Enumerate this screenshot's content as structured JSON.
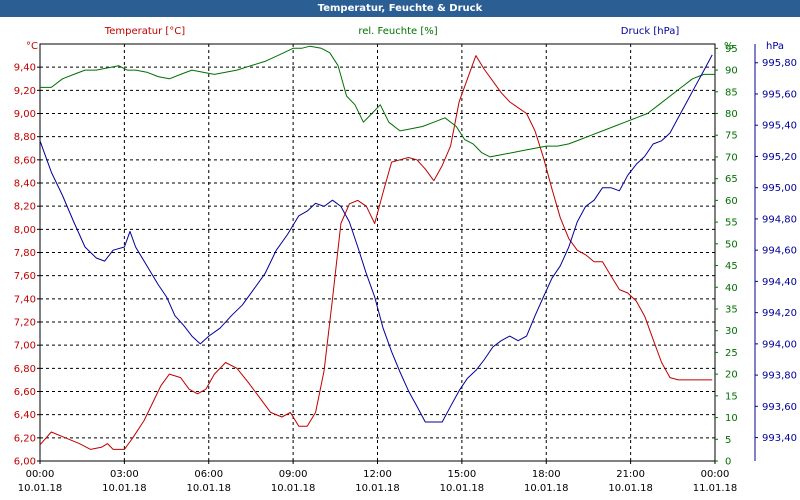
{
  "window": {
    "title": "Temperatur, Feuchte & Druck"
  },
  "chart_data": {
    "type": "line",
    "title": "Temperatur, Feuchte & Druck",
    "colors": {
      "temperature": "#c00000",
      "humidity": "#007000",
      "pressure": "#00009a",
      "title_bar": "#2b5f94"
    },
    "x_ticks": [
      {
        "time": "00:00",
        "date": "10.01.18"
      },
      {
        "time": "03:00",
        "date": "10.01.18"
      },
      {
        "time": "06:00",
        "date": "10.01.18"
      },
      {
        "time": "09:00",
        "date": "10.01.18"
      },
      {
        "time": "12:00",
        "date": "10.01.18"
      },
      {
        "time": "15:00",
        "date": "10.01.18"
      },
      {
        "time": "18:00",
        "date": "10.01.18"
      },
      {
        "time": "21:00",
        "date": "10.01.18"
      },
      {
        "time": "00:00",
        "date": "11.01.18"
      }
    ],
    "xlim_hours": [
      0,
      24
    ],
    "grid": true,
    "axes": {
      "temperature": {
        "unit": "°C",
        "series_label": "Temperatur [°C]",
        "ylim": [
          6.0,
          9.6
        ],
        "ticks": [
          "6,00",
          "6,20",
          "6,40",
          "6,60",
          "6,80",
          "7,00",
          "7,20",
          "7,40",
          "7,60",
          "7,80",
          "8,00",
          "8,20",
          "8,40",
          "8,60",
          "8,80",
          "9,00",
          "9,20",
          "9,40"
        ]
      },
      "humidity": {
        "unit": "%",
        "series_label": "rel. Feuchte [%]",
        "ylim": [
          0,
          96
        ],
        "ticks": [
          "0",
          "5",
          "10",
          "15",
          "20",
          "25",
          "30",
          "35",
          "40",
          "45",
          "50",
          "55",
          "60",
          "65",
          "70",
          "75",
          "80",
          "85",
          "90",
          "95"
        ]
      },
      "pressure": {
        "unit": "hPa",
        "series_label": "Druck [hPa]",
        "ylim": [
          993.25,
          995.92
        ],
        "ticks": [
          "993,40",
          "993,60",
          "993,80",
          "994,00",
          "994,20",
          "994,40",
          "994,60",
          "994,80",
          "995,00",
          "995,20",
          "995,40",
          "995,60",
          "995,80"
        ]
      }
    },
    "series": [
      {
        "name": "Temperatur [°C]",
        "axis": "temperature",
        "points": [
          [
            0,
            6.14
          ],
          [
            0.4,
            6.25
          ],
          [
            0.9,
            6.2
          ],
          [
            1.4,
            6.15
          ],
          [
            1.8,
            6.1
          ],
          [
            2.2,
            6.12
          ],
          [
            2.4,
            6.15
          ],
          [
            2.6,
            6.1
          ],
          [
            3.0,
            6.1
          ],
          [
            3.3,
            6.2
          ],
          [
            3.7,
            6.35
          ],
          [
            4.0,
            6.5
          ],
          [
            4.3,
            6.65
          ],
          [
            4.6,
            6.75
          ],
          [
            5.0,
            6.72
          ],
          [
            5.3,
            6.62
          ],
          [
            5.6,
            6.58
          ],
          [
            5.9,
            6.62
          ],
          [
            6.2,
            6.75
          ],
          [
            6.6,
            6.85
          ],
          [
            7.0,
            6.8
          ],
          [
            7.4,
            6.68
          ],
          [
            7.8,
            6.55
          ],
          [
            8.2,
            6.42
          ],
          [
            8.6,
            6.38
          ],
          [
            8.9,
            6.42
          ],
          [
            9.2,
            6.3
          ],
          [
            9.5,
            6.3
          ],
          [
            9.8,
            6.42
          ],
          [
            10.1,
            6.78
          ],
          [
            10.4,
            7.4
          ],
          [
            10.7,
            8.05
          ],
          [
            11.0,
            8.22
          ],
          [
            11.3,
            8.25
          ],
          [
            11.6,
            8.2
          ],
          [
            11.9,
            8.05
          ],
          [
            12.2,
            8.32
          ],
          [
            12.5,
            8.58
          ],
          [
            12.8,
            8.6
          ],
          [
            13.1,
            8.62
          ],
          [
            13.4,
            8.6
          ],
          [
            13.7,
            8.52
          ],
          [
            14.0,
            8.42
          ],
          [
            14.3,
            8.55
          ],
          [
            14.6,
            8.72
          ],
          [
            14.9,
            9.1
          ],
          [
            15.2,
            9.3
          ],
          [
            15.5,
            9.5
          ],
          [
            15.8,
            9.38
          ],
          [
            16.1,
            9.28
          ],
          [
            16.4,
            9.18
          ],
          [
            16.7,
            9.1
          ],
          [
            17.0,
            9.05
          ],
          [
            17.3,
            9.0
          ],
          [
            17.6,
            8.85
          ],
          [
            17.9,
            8.62
          ],
          [
            18.2,
            8.35
          ],
          [
            18.5,
            8.1
          ],
          [
            18.8,
            7.92
          ],
          [
            19.1,
            7.82
          ],
          [
            19.4,
            7.78
          ],
          [
            19.7,
            7.72
          ],
          [
            20.0,
            7.72
          ],
          [
            20.3,
            7.6
          ],
          [
            20.6,
            7.48
          ],
          [
            20.9,
            7.45
          ],
          [
            21.2,
            7.38
          ],
          [
            21.5,
            7.25
          ],
          [
            21.8,
            7.05
          ],
          [
            22.1,
            6.85
          ],
          [
            22.4,
            6.72
          ],
          [
            22.7,
            6.7
          ],
          [
            23.0,
            6.7
          ],
          [
            23.3,
            6.7
          ],
          [
            23.6,
            6.7
          ],
          [
            23.9,
            6.7
          ]
        ]
      },
      {
        "name": "rel. Feuchte [%]",
        "axis": "humidity",
        "points": [
          [
            0,
            86
          ],
          [
            0.4,
            86
          ],
          [
            0.8,
            88
          ],
          [
            1.2,
            89
          ],
          [
            1.6,
            90
          ],
          [
            2.0,
            90
          ],
          [
            2.4,
            90.5
          ],
          [
            2.8,
            91
          ],
          [
            3.1,
            90
          ],
          [
            3.4,
            90
          ],
          [
            3.8,
            89.5
          ],
          [
            4.2,
            88.5
          ],
          [
            4.6,
            88
          ],
          [
            5.0,
            89
          ],
          [
            5.4,
            90
          ],
          [
            5.8,
            89.5
          ],
          [
            6.2,
            89
          ],
          [
            6.6,
            89.5
          ],
          [
            7.0,
            90
          ],
          [
            7.5,
            91
          ],
          [
            8.0,
            92
          ],
          [
            8.5,
            93.5
          ],
          [
            9.0,
            95
          ],
          [
            9.3,
            95
          ],
          [
            9.6,
            95.5
          ],
          [
            10.0,
            95
          ],
          [
            10.3,
            94
          ],
          [
            10.6,
            91
          ],
          [
            10.9,
            84
          ],
          [
            11.2,
            82
          ],
          [
            11.5,
            78
          ],
          [
            11.8,
            80
          ],
          [
            12.1,
            82
          ],
          [
            12.4,
            78
          ],
          [
            12.8,
            76
          ],
          [
            13.2,
            76.5
          ],
          [
            13.6,
            77
          ],
          [
            14.0,
            78
          ],
          [
            14.4,
            79
          ],
          [
            14.8,
            77
          ],
          [
            15.1,
            74
          ],
          [
            15.4,
            73
          ],
          [
            15.7,
            71
          ],
          [
            16.0,
            70
          ],
          [
            16.4,
            70.5
          ],
          [
            16.8,
            71
          ],
          [
            17.2,
            71.5
          ],
          [
            17.6,
            72
          ],
          [
            18.0,
            72.5
          ],
          [
            18.4,
            72.5
          ],
          [
            18.8,
            73
          ],
          [
            19.2,
            74
          ],
          [
            19.6,
            75
          ],
          [
            20.0,
            76
          ],
          [
            20.4,
            77
          ],
          [
            20.8,
            78
          ],
          [
            21.2,
            79
          ],
          [
            21.6,
            80
          ],
          [
            22.0,
            82
          ],
          [
            22.4,
            84
          ],
          [
            22.8,
            86
          ],
          [
            23.2,
            88
          ],
          [
            23.6,
            89
          ],
          [
            24.0,
            89
          ]
        ]
      },
      {
        "name": "Druck [hPa]",
        "axis": "pressure",
        "points": [
          [
            0,
            995.3
          ],
          [
            0.4,
            995.1
          ],
          [
            0.8,
            994.95
          ],
          [
            1.2,
            994.78
          ],
          [
            1.6,
            994.62
          ],
          [
            2.0,
            994.55
          ],
          [
            2.3,
            994.53
          ],
          [
            2.6,
            994.6
          ],
          [
            3.0,
            994.62
          ],
          [
            3.2,
            994.72
          ],
          [
            3.4,
            994.62
          ],
          [
            3.8,
            994.5
          ],
          [
            4.2,
            994.38
          ],
          [
            4.5,
            994.3
          ],
          [
            4.8,
            994.18
          ],
          [
            5.1,
            994.12
          ],
          [
            5.4,
            994.05
          ],
          [
            5.7,
            994.0
          ],
          [
            6.0,
            994.05
          ],
          [
            6.4,
            994.1
          ],
          [
            6.8,
            994.18
          ],
          [
            7.2,
            994.25
          ],
          [
            7.6,
            994.35
          ],
          [
            8.0,
            994.45
          ],
          [
            8.4,
            994.6
          ],
          [
            8.8,
            994.7
          ],
          [
            9.2,
            994.82
          ],
          [
            9.5,
            994.85
          ],
          [
            9.8,
            994.9
          ],
          [
            10.1,
            994.88
          ],
          [
            10.4,
            994.92
          ],
          [
            10.7,
            994.88
          ],
          [
            11.0,
            994.78
          ],
          [
            11.3,
            994.62
          ],
          [
            11.6,
            994.45
          ],
          [
            11.9,
            994.3
          ],
          [
            12.2,
            994.1
          ],
          [
            12.5,
            993.95
          ],
          [
            12.8,
            993.82
          ],
          [
            13.1,
            993.7
          ],
          [
            13.4,
            993.6
          ],
          [
            13.7,
            993.5
          ],
          [
            14.0,
            993.5
          ],
          [
            14.3,
            993.5
          ],
          [
            14.6,
            993.6
          ],
          [
            14.9,
            993.7
          ],
          [
            15.2,
            993.78
          ],
          [
            15.5,
            993.83
          ],
          [
            15.8,
            993.9
          ],
          [
            16.1,
            993.98
          ],
          [
            16.4,
            994.02
          ],
          [
            16.7,
            994.05
          ],
          [
            17.0,
            994.02
          ],
          [
            17.3,
            994.05
          ],
          [
            17.6,
            994.18
          ],
          [
            17.9,
            994.3
          ],
          [
            18.2,
            994.42
          ],
          [
            18.5,
            994.5
          ],
          [
            18.8,
            994.62
          ],
          [
            19.1,
            994.78
          ],
          [
            19.4,
            994.88
          ],
          [
            19.7,
            994.92
          ],
          [
            20.0,
            995.0
          ],
          [
            20.3,
            995.0
          ],
          [
            20.6,
            994.98
          ],
          [
            20.9,
            995.08
          ],
          [
            21.2,
            995.15
          ],
          [
            21.5,
            995.2
          ],
          [
            21.8,
            995.28
          ],
          [
            22.1,
            995.3
          ],
          [
            22.4,
            995.35
          ],
          [
            22.7,
            995.45
          ],
          [
            23.0,
            995.55
          ],
          [
            23.3,
            995.65
          ],
          [
            23.6,
            995.75
          ],
          [
            23.9,
            995.85
          ]
        ]
      }
    ]
  }
}
